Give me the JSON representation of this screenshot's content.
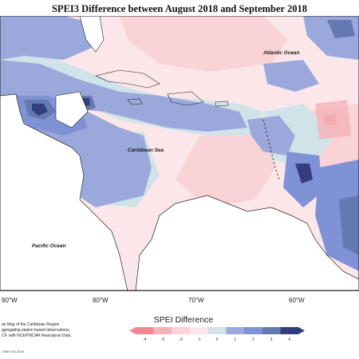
{
  "title": "SPEI3 Difference between August 2018 and September 2018",
  "labels": {
    "atlantic": "Atlantic Ocean",
    "caribbean": "Caribbean Sea",
    "pacific": "Pacific Ocean"
  },
  "longitudes": [
    "90°W",
    "80°W",
    "70°W",
    "60°W"
  ],
  "caption_lines": [
    "an Map of the Caribbean Region",
    "ggregating station based observations,",
    "CF, with NCEP/NCAR Reanalysis Data."
  ],
  "credit": "CIMH Oct-2018",
  "legend": {
    "title": "SPEI Difference",
    "ticks": [
      "-4",
      "-3",
      "-2",
      "-1",
      "0",
      "1",
      "2",
      "3",
      "4"
    ],
    "colors": [
      "#f08a90",
      "#f4b3b8",
      "#f9d3d6",
      "#fbe7ea",
      "#cfe3e8",
      "#9aa8dc",
      "#7f92d5",
      "#6479b0",
      "#353e7d"
    ]
  }
}
